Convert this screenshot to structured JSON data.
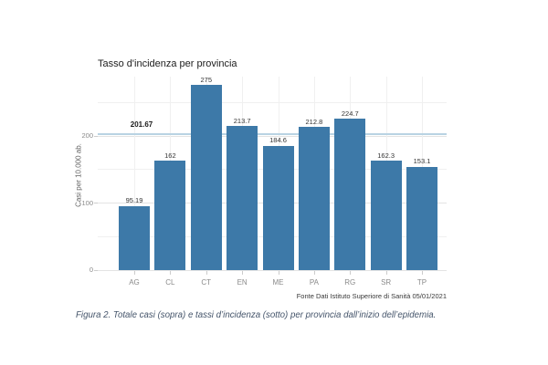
{
  "figure": {
    "source_note": "Fonte Dati Istituto Superiore di Sanità 05/01/2021",
    "caption": "Figura 2. Totale casi (sopra) e tassi d’incidenza (sotto) per provincia dall’inizio dell’epidemia."
  },
  "chart_data": {
    "type": "bar",
    "title": "Tasso d'incidenza per provincia",
    "categories": [
      "AG",
      "CL",
      "CT",
      "EN",
      "ME",
      "PA",
      "RG",
      "SR",
      "TP"
    ],
    "values": [
      95.19,
      162,
      275,
      213.7,
      184.6,
      212.8,
      224.7,
      162.3,
      153.1
    ],
    "value_labels": [
      "95.19",
      "162",
      "275",
      "213.7",
      "184.6",
      "212.8",
      "224.7",
      "162.3",
      "153.1"
    ],
    "xlabel": "",
    "ylabel": "Casi per 10.000 ab.",
    "yticks": [
      0,
      100,
      200
    ],
    "minor_gridlines": [
      50,
      150,
      250
    ],
    "ylim": [
      0,
      288
    ],
    "grid": true,
    "legend": "none",
    "reference_line": {
      "value": 201.67,
      "label": "201.67"
    },
    "colors": {
      "bar": "#3d79a8",
      "reference_line": "#b9d3e3",
      "caption_text": "#44546a"
    }
  }
}
